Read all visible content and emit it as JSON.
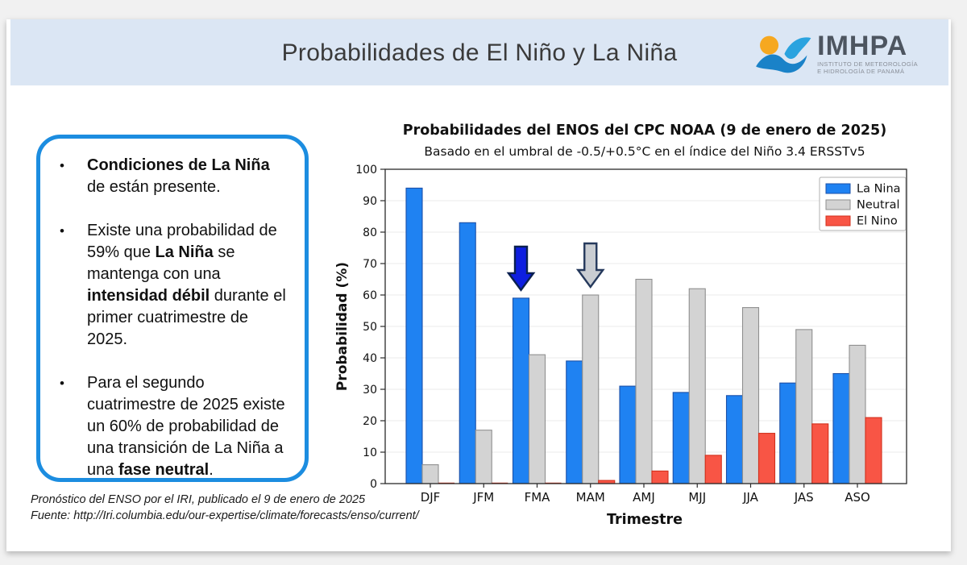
{
  "header": {
    "title": "Probabilidades de El Niño y La Niña",
    "logo": {
      "acronym": "IMHPA",
      "subtitle_line1": "INSTITUTO DE METEOROLOGÍA",
      "subtitle_line2": "E HIDROLOGÍA DE PANAMÁ"
    }
  },
  "callout": {
    "bullets": [
      [
        {
          "t": "Condiciones de La Niña",
          "b": true
        },
        {
          "t": " de están presente.",
          "b": false
        }
      ],
      [
        {
          "t": "Existe una probabilidad de 59% que ",
          "b": false
        },
        {
          "t": "La Niña",
          "b": true
        },
        {
          "t": " se mantenga con una ",
          "b": false
        },
        {
          "t": "intensidad débil",
          "b": true
        },
        {
          "t": " durante el primer cuatrimestre de 2025.",
          "b": false
        }
      ],
      [
        {
          "t": "Para el segundo cuatrimestre de 2025 existe un 60% de probabilidad de una transición de La Niña a una ",
          "b": false
        },
        {
          "t": "fase neutral",
          "b": true
        },
        {
          "t": ".",
          "b": false
        }
      ]
    ]
  },
  "footnote": {
    "line1": "Pronóstico del ENSO por el IRI, publicado el 9 de enero de 2025",
    "line2": "Fuente: http://Iri.columbia.edu/our-expertise/climate/forecasts/enso/current/"
  },
  "chart_data": {
    "type": "bar",
    "title": "Probabilidades del ENOS del CPC NOAA (9 de enero de 2025)",
    "subtitle": "Basado en el umbral de -0.5/+0.5°C en el índice del Niño 3.4 ERSSTv5",
    "xlabel": "Trimestre",
    "ylabel": "Probabilidad (%)",
    "ylim": [
      0,
      100
    ],
    "ytick_step": 10,
    "grid": true,
    "legend_position": "top-right",
    "categories": [
      "DJF",
      "JFM",
      "FMA",
      "MAM",
      "AMJ",
      "MJJ",
      "JJA",
      "JAS",
      "ASO"
    ],
    "series": [
      {
        "name": "La Nina",
        "color": "#1f82f2",
        "edge": "#1b50a8",
        "values": [
          94,
          83,
          59,
          39,
          31,
          29,
          28,
          32,
          35
        ]
      },
      {
        "name": "Neutral",
        "color": "#d3d3d3",
        "edge": "#8f8f8f",
        "values": [
          6,
          17,
          41,
          60,
          65,
          62,
          56,
          49,
          44
        ]
      },
      {
        "name": "El Nino",
        "color": "#f85545",
        "edge": "#d2301c",
        "values": [
          0,
          0,
          0,
          1,
          4,
          9,
          16,
          19,
          21
        ]
      }
    ],
    "annotations": [
      {
        "type": "down-arrow",
        "category": "FMA",
        "series": "La Nina",
        "fill": "#0d1ee0",
        "edge": "#0a2050"
      },
      {
        "type": "down-arrow",
        "category": "MAM",
        "series": "Neutral",
        "fill": "#c9cdd2",
        "edge": "#25395c"
      }
    ]
  },
  "colors": {
    "header_band": "#dbe6f4",
    "callout_border": "#1c8de0",
    "logo_orange": "#f6a820",
    "logo_blue": "#1a82c8",
    "logo_light_blue": "#2aa3df"
  }
}
